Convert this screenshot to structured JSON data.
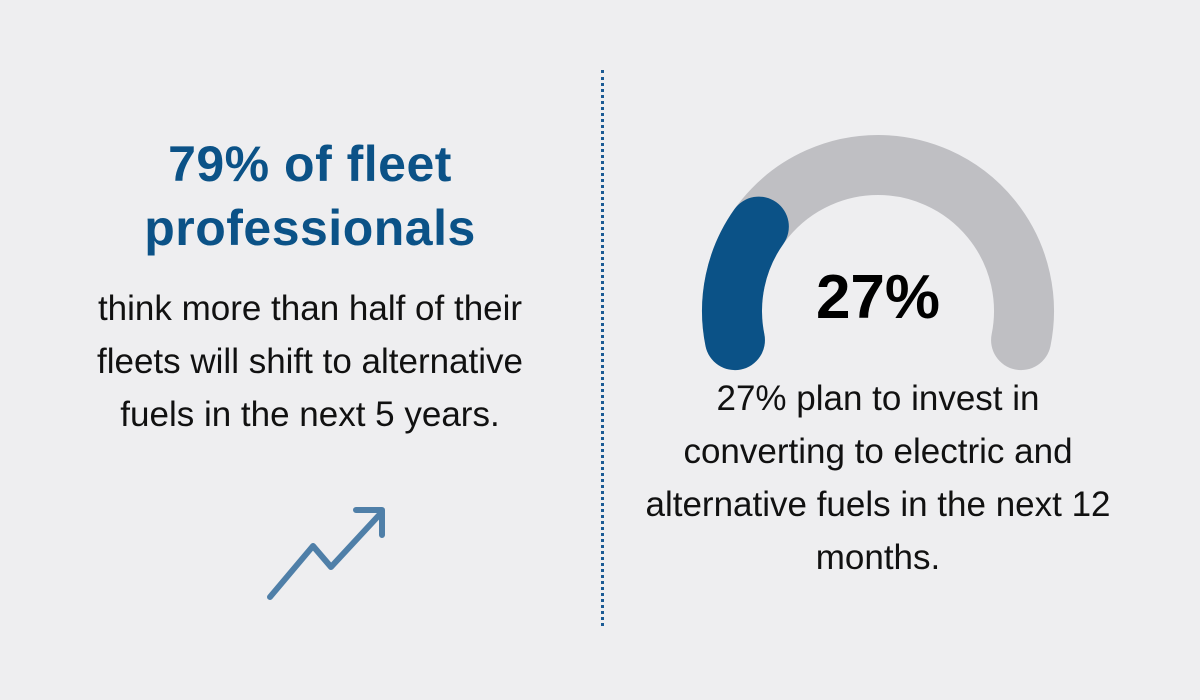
{
  "left": {
    "headline_line1": "79% of fleet",
    "headline_line2": "professionals",
    "body": "think more than half of their fleets will shift to alternative fuels in the next 5 years.",
    "icon": "trend-up-arrow-icon"
  },
  "right": {
    "gauge": {
      "value_percent": 27,
      "fill_color": "#0b5287",
      "track_color": "#bfbfc3"
    },
    "value_label": "27%",
    "body": "27% plan to invest in converting to electric and alternative fuels in the next 12 months."
  },
  "colors": {
    "accent": "#0b5287",
    "icon": "#4f7fa8",
    "background": "#eeeef0"
  }
}
